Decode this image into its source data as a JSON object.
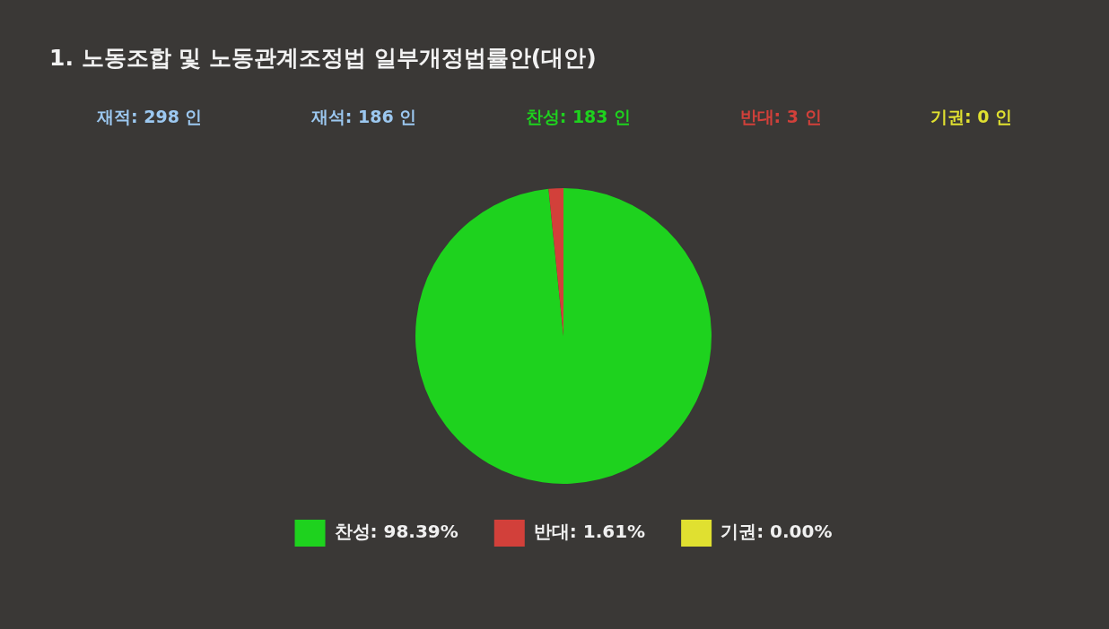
{
  "chart_data": {
    "type": "pie",
    "title": "1. 노동조합 및 노동관계조정법 일부개정법률안(대안)",
    "annotations": [
      "재적: 298 인",
      "재석: 186 인",
      "찬성: 183 인",
      "반대: 3 인",
      "기권: 0 인"
    ],
    "categories": [
      "찬성",
      "반대",
      "기권"
    ],
    "values": [
      98.39,
      1.61,
      0.0
    ],
    "value_labels": [
      "98.39%",
      "1.61%",
      "0.00%"
    ],
    "colors": [
      "#1ed21e",
      "#d2403a",
      "#e0e030"
    ],
    "legend": "bottom"
  }
}
